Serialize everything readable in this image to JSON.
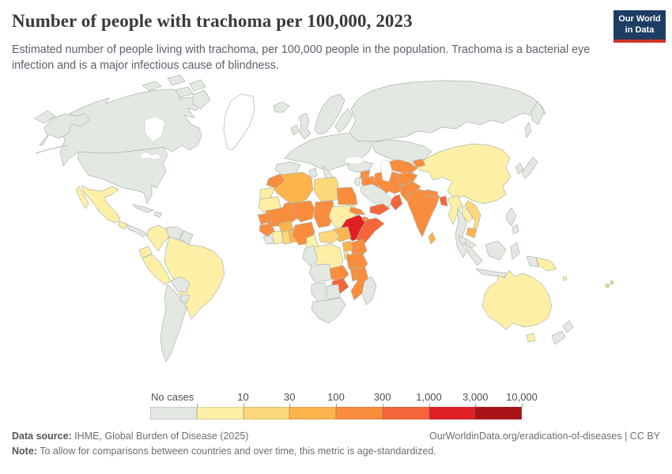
{
  "header": {
    "title": "Number of people with trachoma per 100,000, 2023",
    "subtitle": "Estimated number of people living with trachoma, per 100,000 people in the population. Trachoma is a bacterial eye infection and is a major infectious cause of blindness.",
    "logo_line1": "Our World",
    "logo_line2": "in Data",
    "logo_bg_color": "#1d3d63",
    "logo_accent_color": "#cf3328"
  },
  "chart_data": {
    "type": "choropleth_world_map",
    "title": "Number of people with trachoma per 100,000, 2023",
    "metric": "People living with trachoma per 100,000 population",
    "year": "2023",
    "legend_position": "bottom",
    "legend": {
      "no_cases_label": "No cases",
      "tick_labels": [
        "10",
        "30",
        "100",
        "300",
        "1,000",
        "3,000",
        "10,000"
      ],
      "no_data_color": "#ffffff",
      "bins": [
        {
          "id": "no-cases",
          "label": "No cases",
          "color": "#e4e8e2"
        },
        {
          "id": "b1",
          "label": "up to 10",
          "color": "#fdf0a6"
        },
        {
          "id": "b2",
          "label": "10–30",
          "color": "#fdd87a"
        },
        {
          "id": "b3",
          "label": "30–100",
          "color": "#fdb44d"
        },
        {
          "id": "b4",
          "label": "100–300",
          "color": "#f98d3d"
        },
        {
          "id": "b5",
          "label": "300–1,000",
          "color": "#f4663a"
        },
        {
          "id": "b6",
          "label": "1,000–3,000",
          "color": "#e01f24"
        },
        {
          "id": "b7",
          "label": "3,000–10,000",
          "color": "#a81318"
        }
      ]
    },
    "countries": {
      "Canada": "no-cases",
      "United States": "no-cases",
      "Greenland": "no-data",
      "Mexico": "b1",
      "Guatemala": "b1",
      "Central America": "no-cases",
      "Cuba": "no-cases",
      "Hispaniola": "no-cases",
      "Colombia": "b1",
      "Venezuela": "no-cases",
      "Guyana": "no-cases",
      "Ecuador": "b1",
      "Peru": "b1",
      "Brazil": "b1",
      "Bolivia": "no-cases",
      "Paraguay": "no-cases",
      "Argentina": "no-cases",
      "Iceland": "no-cases",
      "United Kingdom": "no-cases",
      "Ireland": "no-cases",
      "Scandinavia": "no-cases",
      "Europe (mainland)": "no-cases",
      "Spain": "no-cases",
      "Italy": "no-cases",
      "Russia": "no-cases",
      "Kazakhstan": "no-cases",
      "Mongolia": "no-cases",
      "Turkey": "no-cases",
      "Syria": "b4",
      "Iraq": "b4",
      "Levant": "no-cases",
      "Saudi Arabia": "no-cases",
      "Yemen": "b5",
      "Oman": "b5",
      "Iran": "b4",
      "Central Asia": "b4",
      "Tajikistan": "b4",
      "Afghanistan": "b4",
      "Pakistan": "b4",
      "India": "b4",
      "Nepal": "b4",
      "Bangladesh": "b5",
      "Sri Lanka": "b3",
      "China": "b1",
      "Myanmar": "b1",
      "Laos": "b1",
      "Vietnam": "b2",
      "Cambodia": "b3",
      "Thailand": "no-cases",
      "Malaysia": "no-cases",
      "Indonesia": "no-cases",
      "Philippines": "no-cases",
      "Japan": "no-cases",
      "South Korea": "no-cases",
      "Papua New Guinea": "b1",
      "Indonesia (Papua)": "no-cases",
      "Australia": "b1",
      "New Zealand": "no-cases",
      "Fiji": "b2",
      "Solomon Islands": "b1",
      "Morocco": "b4",
      "Western Sahara": "b1",
      "Mauritania": "b1",
      "Algeria": "b3",
      "Tunisia": "no-cases",
      "Libya": "b2",
      "Egypt": "b4",
      "Mali": "b4",
      "Niger": "b4",
      "Chad": "b4",
      "Sudan": "b1",
      "Eritrea": "b4",
      "Djibouti": "b4",
      "Ethiopia": "b6",
      "Somalia": "b5",
      "South Sudan": "b3",
      "Kenya": "b4",
      "Uganda": "b3",
      "Rwanda": "b2",
      "Tanzania": "b4",
      "Senegal": "b4",
      "Guinea": "b4",
      "Liberia": "no-cases",
      "Cote d'Ivoire": "b1",
      "Ghana": "b2",
      "Benin": "b3",
      "Burkina Faso": "b3",
      "Nigeria": "b4",
      "Cameroon": "b1",
      "Central African Republic": "b2",
      "Democratic Republic of Congo": "b1",
      "Congo": "no-cases",
      "Angola": "no-cases",
      "Zambia": "b4",
      "Malawi": "b4",
      "Mozambique": "b4",
      "Zimbabwe": "b5",
      "Namibia": "no-cases",
      "Botswana": "no-cases",
      "South Africa": "no-cases",
      "Madagascar": "no-cases"
    }
  },
  "footer": {
    "source_label": "Data source:",
    "source_text": " IHME, Global Burden of Disease (2025)",
    "link_text": "OurWorldinData.org/eradication-of-diseases | CC BY",
    "note_label": "Note:",
    "note_text": " To allow for comparisons between countries and over time, this metric is age-standardized."
  }
}
